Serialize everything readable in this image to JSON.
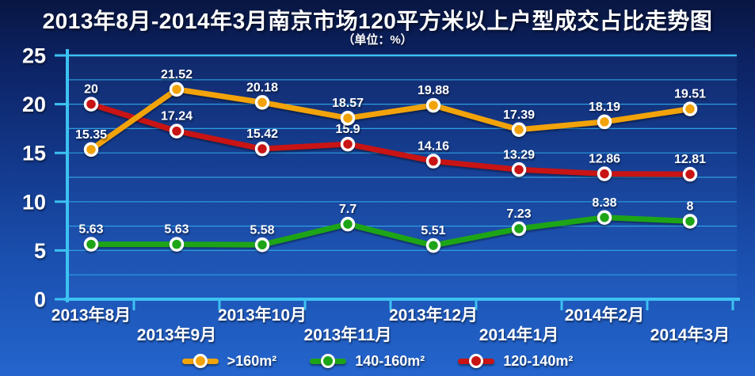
{
  "title": "2013年8月-2014年3月南京市场120平方米以上户型成交占比走势图",
  "subtitle": "（单位：%）",
  "colors": {
    "background_top": "#081641",
    "background_bottom": "#2465CD",
    "axis": "#3DC2F2",
    "grid": "#2D9FE0",
    "text": "#FFFFFF",
    "orange_series": "#F2A30A",
    "green_series": "#1EA417",
    "red_series": "#C81414"
  },
  "chart_data": {
    "type": "line",
    "title": "2013年8月-2014年3月南京市场120平方米以上户型成交占比走势图",
    "subtitle": "（单位：%）",
    "categories": [
      "2013年8月",
      "2013年9月",
      "2013年10月",
      "2013年11月",
      "2013年12月",
      "2014年1月",
      "2014年2月",
      "2014年3月"
    ],
    "series": [
      {
        "name": ">160m²",
        "color": "#F2A30A",
        "values": [
          15.35,
          21.52,
          20.18,
          18.57,
          19.88,
          17.39,
          18.19,
          19.51
        ]
      },
      {
        "name": "140-160m²",
        "color": "#1EA417",
        "values": [
          5.63,
          5.63,
          5.58,
          7.7,
          5.51,
          7.23,
          8.38,
          8
        ]
      },
      {
        "name": "120-140m²",
        "color": "#C81414",
        "values": [
          20,
          17.24,
          15.42,
          15.9,
          14.16,
          13.29,
          12.86,
          12.81
        ]
      }
    ],
    "ylim": [
      0,
      25
    ],
    "y_ticks": [
      0,
      5,
      10,
      15,
      20,
      25
    ],
    "minor_grid_step": 2.5,
    "grid": true,
    "legend_position": "bottom",
    "xlabel": "",
    "ylabel": ""
  }
}
